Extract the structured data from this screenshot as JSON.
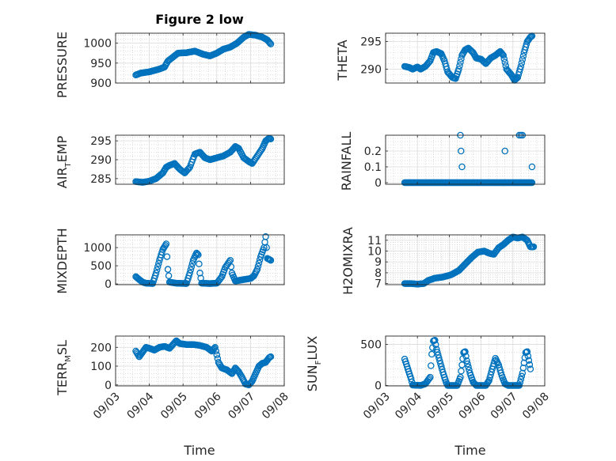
{
  "figure": {
    "title": "Figure 2 low",
    "xlabel": "Time",
    "x_ticks": [
      "09/03",
      "09/04",
      "09/05",
      "09/06",
      "09/07",
      "09/08"
    ],
    "marker_color": "#0072BD"
  },
  "chart_data": [
    {
      "type": "scatter",
      "name": "pressure",
      "ylabel": "PRESSURE",
      "ylim": [
        900,
        1025
      ],
      "yticks": [
        900,
        950,
        1000
      ],
      "yticklabels": [
        "900",
        "950",
        "1000"
      ],
      "xlim": [
        0,
        5
      ],
      "xtick_labels": [],
      "grid": "major+minor",
      "anchors": [
        [
          0.6,
          920
        ],
        [
          0.75,
          925
        ],
        [
          1.0,
          928
        ],
        [
          1.3,
          935
        ],
        [
          1.45,
          940
        ],
        [
          1.55,
          955
        ],
        [
          1.7,
          965
        ],
        [
          1.85,
          975
        ],
        [
          2.1,
          976
        ],
        [
          2.35,
          980
        ],
        [
          2.6,
          972
        ],
        [
          2.8,
          968
        ],
        [
          3.0,
          975
        ],
        [
          3.2,
          985
        ],
        [
          3.4,
          990
        ],
        [
          3.6,
          1000
        ],
        [
          3.8,
          1015
        ],
        [
          3.95,
          1022
        ],
        [
          4.15,
          1020
        ],
        [
          4.35,
          1015
        ],
        [
          4.5,
          1008
        ],
        [
          4.6,
          998
        ]
      ]
    },
    {
      "type": "scatter",
      "name": "theta",
      "ylabel": "THETA",
      "ylim": [
        287.5,
        296.5
      ],
      "yticks": [
        290,
        295
      ],
      "yticklabels": [
        "290",
        "295"
      ],
      "xlim": [
        0,
        5
      ],
      "xtick_labels": [],
      "grid": "major+minor",
      "anchors": [
        [
          0.6,
          290.5
        ],
        [
          0.75,
          290.3
        ],
        [
          0.85,
          290.0
        ],
        [
          1.0,
          290.4
        ],
        [
          1.1,
          290.0
        ],
        [
          1.25,
          290.5
        ],
        [
          1.4,
          291.5
        ],
        [
          1.5,
          293.0
        ],
        [
          1.6,
          293.2
        ],
        [
          1.75,
          292.8
        ],
        [
          1.85,
          291.5
        ],
        [
          1.95,
          289.5
        ],
        [
          2.1,
          288.5
        ],
        [
          2.2,
          288.3
        ],
        [
          2.3,
          290.0
        ],
        [
          2.4,
          292.5
        ],
        [
          2.5,
          293.5
        ],
        [
          2.6,
          293.8
        ],
        [
          2.75,
          293.0
        ],
        [
          2.85,
          292.0
        ],
        [
          3.0,
          291.8
        ],
        [
          3.15,
          291.0
        ],
        [
          3.3,
          292.0
        ],
        [
          3.45,
          292.5
        ],
        [
          3.6,
          293.2
        ],
        [
          3.7,
          292.5
        ],
        [
          3.8,
          290.0
        ],
        [
          3.95,
          289.0
        ],
        [
          4.05,
          288.0
        ],
        [
          4.15,
          288.5
        ],
        [
          4.25,
          290.5
        ],
        [
          4.35,
          293.0
        ],
        [
          4.45,
          295.0
        ],
        [
          4.55,
          295.8
        ],
        [
          4.6,
          296.0
        ]
      ]
    },
    {
      "type": "scatter",
      "name": "air_temp",
      "ylabel_main": "AIR",
      "ylabel_sub": "T",
      "ylabel_rest": "EMP",
      "ylim": [
        283.5,
        296.5
      ],
      "yticks": [
        285,
        290,
        295
      ],
      "yticklabels": [
        "285",
        "290",
        "295"
      ],
      "xlim": [
        0,
        5
      ],
      "xtick_labels": [],
      "grid": "major+minor",
      "anchors": [
        [
          0.6,
          284.2
        ],
        [
          0.8,
          284.0
        ],
        [
          1.0,
          284.3
        ],
        [
          1.2,
          285.0
        ],
        [
          1.4,
          286.5
        ],
        [
          1.5,
          288.0
        ],
        [
          1.6,
          288.5
        ],
        [
          1.75,
          289.0
        ],
        [
          1.9,
          287.5
        ],
        [
          2.05,
          286.5
        ],
        [
          2.2,
          288.0
        ],
        [
          2.35,
          291.5
        ],
        [
          2.5,
          292.0
        ],
        [
          2.65,
          290.5
        ],
        [
          2.8,
          290.0
        ],
        [
          3.0,
          290.5
        ],
        [
          3.2,
          291.0
        ],
        [
          3.4,
          292.0
        ],
        [
          3.55,
          293.5
        ],
        [
          3.65,
          293.0
        ],
        [
          3.8,
          290.5
        ],
        [
          3.95,
          289.5
        ],
        [
          4.05,
          289.0
        ],
        [
          4.2,
          291.0
        ],
        [
          4.35,
          293.0
        ],
        [
          4.45,
          295.0
        ],
        [
          4.55,
          295.7
        ],
        [
          4.6,
          295.5
        ]
      ]
    },
    {
      "type": "scatter",
      "name": "rainfall",
      "ylabel": "RAINFALL",
      "ylim": [
        -0.01,
        0.3
      ],
      "yticks": [
        0,
        0.1,
        0.2
      ],
      "yticklabels": [
        "0",
        "0.1",
        "0.2"
      ],
      "xlim": [
        0,
        5
      ],
      "xtick_labels": [],
      "grid": "major+minor",
      "baseline_range": [
        0.6,
        4.6
      ],
      "baseline_value": 0,
      "points": [
        [
          2.35,
          0.3
        ],
        [
          2.37,
          0.2
        ],
        [
          2.4,
          0.1
        ],
        [
          3.75,
          0.2
        ],
        [
          4.2,
          0.3
        ],
        [
          4.25,
          0.3
        ],
        [
          4.3,
          0.3
        ],
        [
          4.6,
          0.1
        ]
      ]
    },
    {
      "type": "scatter",
      "name": "mixdepth",
      "ylabel": "MIXDEPTH",
      "ylim": [
        -20,
        1350
      ],
      "yticks": [
        0,
        500,
        1000
      ],
      "yticklabels": [
        "0",
        "500",
        "1000"
      ],
      "xlim": [
        0,
        5
      ],
      "xtick_labels": [],
      "grid": "major+minor",
      "anchors": [
        [
          0.6,
          200
        ],
        [
          0.7,
          120
        ],
        [
          0.8,
          50
        ],
        [
          0.9,
          20
        ],
        [
          1.1,
          10
        ],
        [
          1.2,
          300
        ],
        [
          1.3,
          650
        ],
        [
          1.4,
          950
        ],
        [
          1.5,
          1100
        ],
        [
          1.55,
          400
        ],
        [
          1.6,
          50
        ],
        [
          1.8,
          20
        ],
        [
          2.1,
          10
        ],
        [
          2.2,
          300
        ],
        [
          2.3,
          650
        ],
        [
          2.4,
          850
        ],
        [
          2.45,
          800
        ],
        [
          2.5,
          300
        ],
        [
          2.55,
          20
        ],
        [
          2.8,
          10
        ],
        [
          3.0,
          20
        ],
        [
          3.15,
          200
        ],
        [
          3.25,
          450
        ],
        [
          3.4,
          650
        ],
        [
          3.45,
          300
        ],
        [
          3.55,
          80
        ],
        [
          3.8,
          120
        ],
        [
          4.0,
          150
        ],
        [
          4.1,
          220
        ],
        [
          4.2,
          400
        ],
        [
          4.3,
          750
        ],
        [
          4.4,
          1000
        ],
        [
          4.45,
          1300
        ],
        [
          4.5,
          700
        ],
        [
          4.6,
          650
        ]
      ]
    },
    {
      "type": "scatter",
      "name": "h2omixra",
      "ylabel": "H2OMIXRA",
      "ylim": [
        6.9,
        11.5
      ],
      "yticks": [
        7,
        8,
        9,
        10,
        11
      ],
      "yticklabels": [
        "7",
        "8",
        "9",
        "10",
        "11"
      ],
      "xlim": [
        0,
        5
      ],
      "xtick_labels": [],
      "grid": "major+minor",
      "anchors": [
        [
          0.6,
          7.0
        ],
        [
          0.8,
          7.0
        ],
        [
          1.0,
          6.95
        ],
        [
          1.2,
          7.0
        ],
        [
          1.35,
          7.3
        ],
        [
          1.55,
          7.5
        ],
        [
          1.8,
          7.6
        ],
        [
          2.05,
          7.8
        ],
        [
          2.3,
          8.2
        ],
        [
          2.5,
          8.8
        ],
        [
          2.7,
          9.4
        ],
        [
          2.9,
          9.9
        ],
        [
          3.1,
          10.0
        ],
        [
          3.25,
          9.8
        ],
        [
          3.4,
          9.7
        ],
        [
          3.55,
          10.3
        ],
        [
          3.7,
          10.6
        ],
        [
          3.85,
          11.0
        ],
        [
          4.0,
          11.3
        ],
        [
          4.15,
          11.2
        ],
        [
          4.3,
          11.3
        ],
        [
          4.45,
          11.0
        ],
        [
          4.55,
          10.4
        ],
        [
          4.65,
          10.4
        ]
      ]
    },
    {
      "type": "scatter",
      "name": "terr_msl",
      "ylabel_main": "TERR",
      "ylabel_sub": "M",
      "ylabel_rest": "SL",
      "ylim": [
        -5,
        260
      ],
      "yticks": [
        0,
        100,
        200
      ],
      "yticklabels": [
        "0",
        "100",
        "200"
      ],
      "xlim": [
        0,
        5
      ],
      "xtick_labels": [
        "09/03",
        "09/04",
        "09/05",
        "09/06",
        "09/07",
        "09/08"
      ],
      "grid": "major+minor",
      "anchors": [
        [
          0.6,
          180
        ],
        [
          0.7,
          150
        ],
        [
          0.8,
          175
        ],
        [
          0.9,
          200
        ],
        [
          1.0,
          195
        ],
        [
          1.15,
          185
        ],
        [
          1.3,
          200
        ],
        [
          1.45,
          205
        ],
        [
          1.6,
          195
        ],
        [
          1.8,
          235
        ],
        [
          1.9,
          220
        ],
        [
          2.1,
          215
        ],
        [
          2.3,
          215
        ],
        [
          2.5,
          210
        ],
        [
          2.7,
          200
        ],
        [
          2.85,
          180
        ],
        [
          2.95,
          200
        ],
        [
          3.05,
          120
        ],
        [
          3.15,
          90
        ],
        [
          3.3,
          80
        ],
        [
          3.45,
          60
        ],
        [
          3.55,
          90
        ],
        [
          3.65,
          70
        ],
        [
          3.75,
          40
        ],
        [
          3.85,
          5
        ],
        [
          3.95,
          0
        ],
        [
          4.05,
          20
        ],
        [
          4.15,
          60
        ],
        [
          4.25,
          100
        ],
        [
          4.35,
          115
        ],
        [
          4.45,
          120
        ],
        [
          4.55,
          145
        ],
        [
          4.6,
          150
        ]
      ]
    },
    {
      "type": "scatter",
      "name": "sun_flux",
      "ylabel_main": "SUN",
      "ylabel_sub": "F",
      "ylabel_rest": "LUX",
      "ylim": [
        -5,
        600
      ],
      "yticks": [
        0,
        500
      ],
      "yticklabels": [
        "0",
        "500"
      ],
      "xlim": [
        0,
        5
      ],
      "xtick_labels": [
        "09/03",
        "09/04",
        "09/05",
        "09/06",
        "09/07",
        "09/08"
      ],
      "grid": "major+minor",
      "anchors": [
        [
          0.6,
          320
        ],
        [
          0.7,
          200
        ],
        [
          0.8,
          80
        ],
        [
          0.85,
          5
        ],
        [
          1.1,
          0
        ],
        [
          1.25,
          20
        ],
        [
          1.4,
          100
        ],
        [
          1.45,
          380
        ],
        [
          1.5,
          540
        ],
        [
          1.55,
          550
        ],
        [
          1.6,
          440
        ],
        [
          1.7,
          300
        ],
        [
          1.8,
          160
        ],
        [
          1.9,
          40
        ],
        [
          1.95,
          0
        ],
        [
          2.25,
          0
        ],
        [
          2.35,
          100
        ],
        [
          2.45,
          400
        ],
        [
          2.5,
          410
        ],
        [
          2.55,
          300
        ],
        [
          2.65,
          150
        ],
        [
          2.75,
          40
        ],
        [
          2.85,
          0
        ],
        [
          3.15,
          0
        ],
        [
          3.25,
          60
        ],
        [
          3.35,
          200
        ],
        [
          3.45,
          330
        ],
        [
          3.55,
          250
        ],
        [
          3.65,
          120
        ],
        [
          3.75,
          20
        ],
        [
          3.85,
          0
        ],
        [
          4.2,
          0
        ],
        [
          4.3,
          150
        ],
        [
          4.4,
          400
        ],
        [
          4.45,
          410
        ],
        [
          4.55,
          200
        ]
      ]
    }
  ]
}
